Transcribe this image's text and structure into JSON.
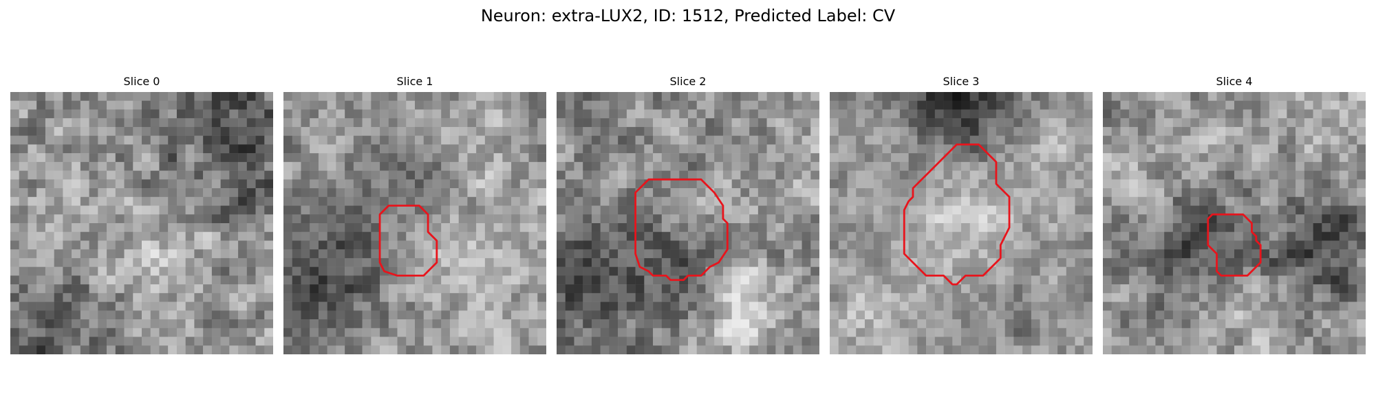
{
  "figure": {
    "title": "Neuron: extra-LUX2, ID: 1512, Predicted Label: CV"
  },
  "colors": {
    "contour": "#e8141c",
    "background": "#ffffff"
  },
  "slices": [
    {
      "title": "Slice 0",
      "seed": 11,
      "base": 150,
      "contrast": 60,
      "blobs": [
        [
          25,
          5,
          -70,
          6
        ],
        [
          5,
          26,
          -55,
          5
        ],
        [
          14,
          18,
          25,
          5
        ]
      ],
      "contour": []
    },
    {
      "title": "Slice 1",
      "seed": 23,
      "base": 150,
      "contrast": 50,
      "blobs": [
        [
          4,
          20,
          -80,
          5
        ],
        [
          14,
          10,
          -45,
          4
        ],
        [
          21,
          18,
          40,
          5
        ],
        [
          21,
          6,
          30,
          4
        ]
      ],
      "contour": [
        [
          12.0,
          13.0
        ],
        [
          15.5,
          13.0
        ],
        [
          16.5,
          14.0
        ],
        [
          16.5,
          16.0
        ],
        [
          17.5,
          17.0
        ],
        [
          17.5,
          19.5
        ],
        [
          16.0,
          21.0
        ],
        [
          13.0,
          21.0
        ],
        [
          11.5,
          20.5
        ],
        [
          11.0,
          19.5
        ],
        [
          11.0,
          14.0
        ],
        [
          12.0,
          13.0
        ]
      ]
    },
    {
      "title": "Slice 2",
      "seed": 37,
      "base": 140,
      "contrast": 55,
      "blobs": [
        [
          3,
          20,
          -70,
          5
        ],
        [
          21,
          24,
          70,
          3
        ],
        [
          14,
          21,
          -60,
          3
        ],
        [
          25,
          10,
          20,
          5
        ]
      ],
      "contour": [
        [
          10.5,
          10.0
        ],
        [
          16.5,
          10.0
        ],
        [
          18.0,
          11.5
        ],
        [
          19.0,
          13.0
        ],
        [
          19.0,
          14.5
        ],
        [
          19.5,
          15.0
        ],
        [
          19.5,
          18.0
        ],
        [
          18.5,
          19.5
        ],
        [
          17.5,
          20.0
        ],
        [
          16.5,
          21.0
        ],
        [
          15.0,
          21.0
        ],
        [
          14.5,
          21.5
        ],
        [
          13.0,
          21.5
        ],
        [
          12.5,
          21.0
        ],
        [
          11.0,
          21.0
        ],
        [
          10.5,
          20.5
        ],
        [
          9.5,
          20.0
        ],
        [
          9.0,
          18.5
        ],
        [
          9.0,
          11.5
        ],
        [
          10.5,
          10.0
        ]
      ]
    },
    {
      "title": "Slice 3",
      "seed": 53,
      "base": 135,
      "contrast": 45,
      "blobs": [
        [
          14.5,
          14,
          65,
          6
        ],
        [
          14,
          2,
          -80,
          5
        ],
        [
          25,
          6,
          35,
          4
        ],
        [
          3,
          25,
          45,
          4
        ],
        [
          25,
          25,
          40,
          4
        ],
        [
          4,
          4,
          35,
          4
        ],
        [
          22,
          24,
          -40,
          3
        ]
      ],
      "contour": [
        [
          14.5,
          6.0
        ],
        [
          17.0,
          6.0
        ],
        [
          18.0,
          7.0
        ],
        [
          19.0,
          8.0
        ],
        [
          19.0,
          10.5
        ],
        [
          20.0,
          11.5
        ],
        [
          20.5,
          12.0
        ],
        [
          20.5,
          15.5
        ],
        [
          20.0,
          16.5
        ],
        [
          19.5,
          17.5
        ],
        [
          19.5,
          19.0
        ],
        [
          18.5,
          20.0
        ],
        [
          17.5,
          21.0
        ],
        [
          15.5,
          21.0
        ],
        [
          15.0,
          21.5
        ],
        [
          14.5,
          22.0
        ],
        [
          14.0,
          22.0
        ],
        [
          13.5,
          21.5
        ],
        [
          13.0,
          21.0
        ],
        [
          11.0,
          21.0
        ],
        [
          10.5,
          20.5
        ],
        [
          9.0,
          19.0
        ],
        [
          8.5,
          18.5
        ],
        [
          8.5,
          13.5
        ],
        [
          9.0,
          12.5
        ],
        [
          9.5,
          12.0
        ],
        [
          9.5,
          11.0
        ],
        [
          11.5,
          9.0
        ],
        [
          14.5,
          6.0
        ]
      ]
    },
    {
      "title": "Slice 4",
      "seed": 71,
      "base": 145,
      "contrast": 55,
      "blobs": [
        [
          8,
          17,
          -65,
          4
        ],
        [
          24,
          17,
          -75,
          4
        ],
        [
          14,
          17,
          -35,
          3
        ],
        [
          16,
          26,
          30,
          4
        ],
        [
          5,
          8,
          25,
          5
        ],
        [
          26,
          5,
          30,
          4
        ]
      ],
      "contour": [
        [
          12.5,
          14.0
        ],
        [
          16.0,
          14.0
        ],
        [
          17.0,
          15.0
        ],
        [
          17.0,
          16.0
        ],
        [
          17.5,
          16.5
        ],
        [
          17.5,
          17.0
        ],
        [
          18.0,
          17.5
        ],
        [
          18.0,
          19.5
        ],
        [
          16.5,
          21.0
        ],
        [
          13.5,
          21.0
        ],
        [
          13.0,
          20.5
        ],
        [
          13.0,
          18.5
        ],
        [
          12.5,
          18.0
        ],
        [
          12.0,
          17.5
        ],
        [
          12.0,
          14.5
        ],
        [
          12.5,
          14.0
        ]
      ]
    }
  ]
}
